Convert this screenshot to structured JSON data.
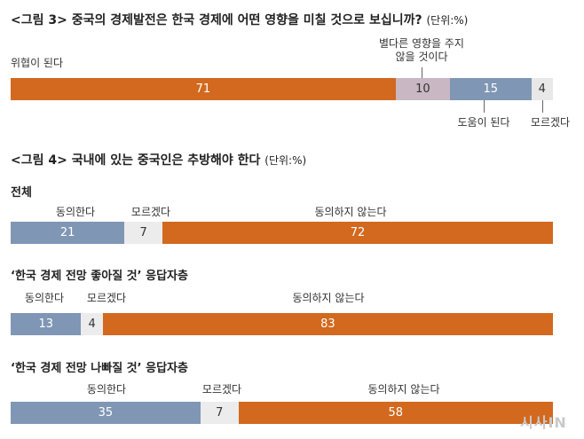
{
  "figure3": {
    "title": "<그림 3> 중국의 경제발전은 한국 경제에 어떤 영향을 미칠 것으로 보십니까?",
    "unit": "(단위:%)",
    "chart_data": {
      "type": "bar",
      "orientation": "horizontal-stacked",
      "categories": [
        "위협이 된다",
        "별다른 영향을 주지 않을 것이다",
        "도움이 된다",
        "모르겠다"
      ],
      "values": [
        71,
        10,
        15,
        4
      ],
      "colors": [
        "#d2691e",
        "#c9b7c3",
        "#7f96b5",
        "#e8e8e8"
      ]
    },
    "label_threat": "위협이 된다",
    "label_none": "별다른 영향을 주지\n않을 것이다",
    "label_help": "도움이 된다",
    "label_dontknow": "모르겠다"
  },
  "figure4": {
    "title": "<그림 4> 국내에 있는 중국인은 추방해야 한다",
    "unit": "(단위:%)",
    "chart_data": [
      {
        "type": "bar",
        "orientation": "horizontal-stacked",
        "group": "전체",
        "categories": [
          "동의한다",
          "모르겠다",
          "동의하지 않는다"
        ],
        "values": [
          21,
          7,
          72
        ]
      },
      {
        "type": "bar",
        "orientation": "horizontal-stacked",
        "group": "‘한국 경제 전망 좋아질 것’ 응답자층",
        "categories": [
          "동의한다",
          "모르겠다",
          "동의하지 않는다"
        ],
        "values": [
          13,
          4,
          83
        ]
      },
      {
        "type": "bar",
        "orientation": "horizontal-stacked",
        "group": "‘한국 경제 전망 나빠질 것’ 응답자층",
        "categories": [
          "동의한다",
          "모르겠다",
          "동의하지 않는다"
        ],
        "values": [
          35,
          7,
          58
        ]
      }
    ],
    "colors": [
      "#7f96b5",
      "#ececec",
      "#d2691e"
    ],
    "label_agree": "동의한다",
    "label_dontknow": "모르겠다",
    "label_disagree": "동의하지 않는다"
  },
  "watermark": "시사IN"
}
